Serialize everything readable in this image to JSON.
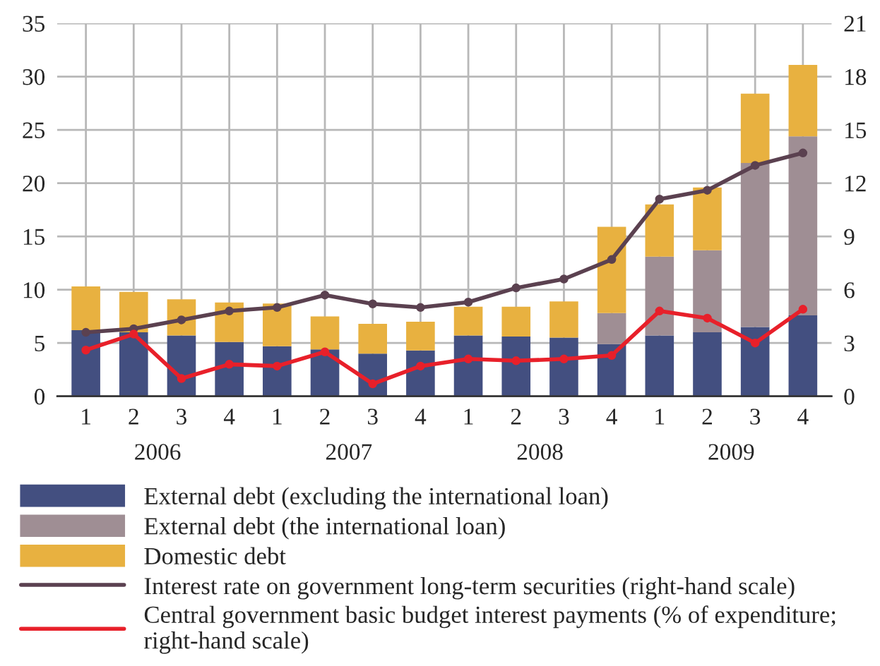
{
  "chart_data": {
    "type": "bar",
    "stacked": true,
    "categories": [
      "1",
      "2",
      "3",
      "4",
      "1",
      "2",
      "3",
      "4",
      "1",
      "2",
      "3",
      "4",
      "1",
      "2",
      "3",
      "4"
    ],
    "series": [
      {
        "name": "External debt (excluding the international loan)",
        "color": "#434f80",
        "values": [
          6.2,
          6.0,
          5.7,
          5.1,
          4.7,
          4.4,
          4.0,
          4.3,
          5.7,
          5.6,
          5.5,
          4.9,
          5.7,
          6.0,
          6.5,
          7.6
        ]
      },
      {
        "name": "External debt (the international loan)",
        "color": "#9f8e94",
        "values": [
          null,
          null,
          null,
          null,
          null,
          null,
          null,
          null,
          null,
          null,
          null,
          2.9,
          7.4,
          7.7,
          15.4,
          16.8
        ]
      },
      {
        "name": "Domestic debt",
        "color": "#e8b140",
        "values": [
          4.1,
          3.8,
          3.4,
          3.7,
          4.0,
          3.1,
          2.8,
          2.7,
          2.7,
          2.8,
          3.4,
          8.1,
          4.9,
          5.9,
          6.5,
          6.7
        ]
      },
      {
        "name": "Interest rate on government long-term securities (right-hand scale)",
        "type": "line",
        "axis": "y2",
        "color": "#5b4150",
        "values": [
          3.6,
          3.8,
          4.3,
          4.8,
          5.0,
          5.7,
          5.2,
          5.0,
          5.3,
          6.1,
          6.6,
          7.7,
          11.1,
          11.6,
          13.0,
          13.7
        ]
      },
      {
        "name": "Central government basic budget interest payments (% of expenditure;\nright-hand scale)",
        "type": "line",
        "axis": "y2",
        "color": "#e8202a",
        "values": [
          2.6,
          3.5,
          1.0,
          1.8,
          1.7,
          2.5,
          0.7,
          1.7,
          2.1,
          2.0,
          2.1,
          2.3,
          4.8,
          4.4,
          3.0,
          4.9
        ]
      }
    ],
    "annotations": [
      "2006",
      "2007",
      "2008",
      "2009"
    ],
    "ylim": [
      0,
      35
    ],
    "yticks": [
      0,
      5,
      10,
      15,
      20,
      25,
      30,
      35
    ],
    "y2lim": [
      0,
      21
    ],
    "y2ticks": [
      0,
      3,
      6,
      9,
      12,
      15,
      18,
      21
    ],
    "grid": true,
    "legend": "bottom",
    "marker": "circle",
    "line_style": "solid"
  }
}
